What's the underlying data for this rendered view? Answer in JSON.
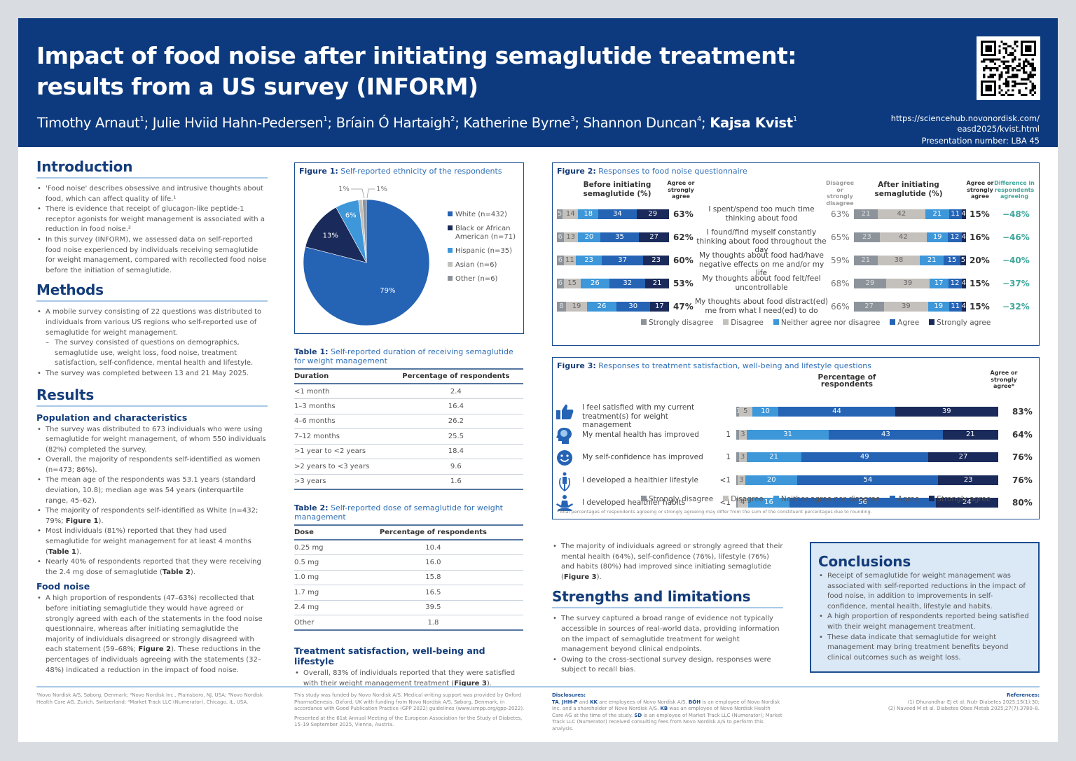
{
  "header": {
    "title_line1": "Impact of food noise after initiating semaglutide treatment:",
    "title_line2": "results from a US survey (INFORM)",
    "authors": [
      {
        "name": "Timothy Arnaut",
        "aff": "1",
        "bold": false
      },
      {
        "name": "Julie Hviid Hahn-Pedersen",
        "aff": "1",
        "bold": false
      },
      {
        "name": "Bríain Ó Hartaigh",
        "aff": "2",
        "bold": false
      },
      {
        "name": "Katherine Byrne",
        "aff": "3",
        "bold": false
      },
      {
        "name": "Shannon Duncan",
        "aff": "4",
        "bold": false
      },
      {
        "name": "Kajsa Kvist",
        "aff": "1",
        "bold": true
      }
    ],
    "url_line1": "https://sciencehub.novonordisk.com/",
    "url_line2": "easd2025/kvist.html",
    "presentation": "Presentation number: LBA 45",
    "qr_icon": "qr-code-icon"
  },
  "introduction": {
    "heading": "Introduction",
    "bullets": [
      "'Food noise' describes obsessive and intrusive thoughts about food, which can affect quality of life.¹",
      "There is evidence that receipt of glucagon-like peptide-1 receptor agonists for weight management is associated with a reduction in food noise.²",
      "In this survey (INFORM), we assessed data on self-reported food noise experienced by individuals receiving semaglutide for weight management, compared with recollected food noise before the initiation of semaglutide."
    ]
  },
  "methods": {
    "heading": "Methods",
    "bullets": [
      "A mobile survey consisting of 22 questions was distributed to individuals from various US regions who self-reported use of semaglutide for weight management.",
      "The survey consisted of questions on demographics, semaglutide use, weight loss, food noise, treatment satisfaction, self-confidence, mental health and lifestyle.",
      "The survey was completed between 13 and 21 May 2025."
    ]
  },
  "results": {
    "heading": "Results",
    "pop_heading": "Population and characteristics",
    "pop_bullets": [
      "The survey was distributed to 673 individuals who were using semaglutide for weight management, of whom 550 individuals (82%) completed the survey.",
      "Overall, the majority of respondents self-identified as women (n=473; 86%).",
      "The mean age of the respondents was 53.1 years (standard deviation, 10.8); median age was 54 years (interquartile range, 45–62).",
      "The majority of respondents self-identified as White (n=432; 79%; ",
      "Most individuals (81%) reported that they had used semaglutide for weight management for at least 4 months (",
      "Nearly 40% of respondents reported that they were receiving the 2.4 mg dose of semaglutide ("
    ],
    "pop_refs": [
      "Figure 1",
      "Table 1",
      "Table 2"
    ],
    "food_heading": "Food noise",
    "food_bullet_a": "A high proportion of respondents (47–63%) recollected that before initiating semaglutide they would have agreed or strongly agreed with each of the statements in the food noise questionnaire, whereas after initiating semaglutide the majority of individuals disagreed or strongly disagreed with each statement (59–68%; ",
    "food_ref": "Figure 2",
    "food_bullet_b": "). These reductions in the percentages of individuals agreeing with the statements (32–48%) indicated a reduction in the impact of food noise."
  },
  "figure1": {
    "label": "Figure 1:",
    "title": "Self-reported ethnicity of the respondents",
    "chart_data": {
      "type": "pie",
      "title": "Self-reported ethnicity of the respondents",
      "slices": [
        {
          "name": "White (n=432)",
          "value": 79,
          "label": "79%",
          "color": "#2563b5"
        },
        {
          "name": "Black or African American (n=71)",
          "value": 13,
          "label": "13%",
          "color": "#1a2a5a"
        },
        {
          "name": "Hispanic (n=35)",
          "value": 6,
          "label": "6%",
          "color": "#3d97d9"
        },
        {
          "name": "Asian (n=6)",
          "value": 1,
          "label": "1%",
          "color": "#c4c1bd"
        },
        {
          "name": "Other (n=6)",
          "value": 1,
          "label": "1%",
          "color": "#8c939b"
        }
      ],
      "legend_position": "right"
    }
  },
  "table1": {
    "label": "Table 1:",
    "title": "Self-reported duration of receiving semaglutide for weight management",
    "headers": [
      "Duration",
      "Percentage of respondents"
    ],
    "rows": [
      [
        "<1 month",
        "2.4"
      ],
      [
        "1–3 months",
        "16.4"
      ],
      [
        "4–6 months",
        "26.2"
      ],
      [
        "7–12 months",
        "25.5"
      ],
      [
        ">1 year to <2 years",
        "18.4"
      ],
      [
        ">2 years to <3 years",
        "9.6"
      ],
      [
        ">3 years",
        "1.6"
      ]
    ]
  },
  "table2": {
    "label": "Table 2:",
    "title": "Self-reported dose of semaglutide for weight management",
    "headers": [
      "Dose",
      "Percentage of respondents"
    ],
    "rows": [
      [
        "0.25 mg",
        "10.4"
      ],
      [
        "0.5 mg",
        "16.0"
      ],
      [
        "1.0 mg",
        "15.8"
      ],
      [
        "1.7 mg",
        "16.5"
      ],
      [
        "2.4 mg",
        "39.5"
      ],
      [
        "Other",
        "1.8"
      ]
    ]
  },
  "treatment": {
    "heading": "Treatment satisfaction, well-being and lifestyle",
    "bullet_a": "Overall, 83% of individuals reported that they were satisfied with their weight management treatment (",
    "ref": "Figure 3",
    "bullet_b": ").",
    "bullet2_a": "The majority of individuals agreed or strongly agreed that their mental health (64%), self-confidence (76%), lifestyle (76%) and habits (80%) had improved since initiating semaglutide (",
    "bullet2_ref": "Figure 3",
    "bullet2_b": ")."
  },
  "figure2": {
    "label": "Figure 2:",
    "title": "Responses to food noise questionnaire",
    "before_header": "Before initiating semaglutide (%)",
    "agree_header": "Agree or strongly agree",
    "disagree_header": "Disagree or strongly disagree",
    "after_header": "After initiating semaglutide (%)",
    "diff_header": "Difference in respondents agreeing",
    "legend": [
      "Strongly disagree",
      "Disagree",
      "Neither agree nor disagree",
      "Agree",
      "Strongly agree"
    ],
    "colors": {
      "strongly_disagree": "#8c939b",
      "disagree": "#c4c1bd",
      "neither": "#3d97d9",
      "agree": "#2563b5",
      "strongly_agree": "#1a2a5a",
      "diff": "#3fa69a"
    },
    "chart_data": {
      "type": "bar",
      "orientation": "horizontal-stacked",
      "title": "Responses to food noise questionnaire",
      "categories": [
        "I spent/spend too much time thinking about food",
        "I found/find myself constantly thinking about food throughout the day",
        "My thoughts about food had/have negative effects on me and/or my life",
        "My thoughts about food felt/feel uncontrollable",
        "My thoughts about food distract(ed) me from what I need(ed) to do"
      ],
      "before": [
        {
          "values": [
            5,
            14,
            18,
            34,
            29
          ],
          "agree": "63%"
        },
        {
          "values": [
            6,
            13,
            20,
            35,
            27
          ],
          "agree": "62%"
        },
        {
          "values": [
            6,
            11,
            23,
            37,
            23
          ],
          "agree": "60%"
        },
        {
          "values": [
            6,
            15,
            26,
            32,
            21
          ],
          "agree": "53%"
        },
        {
          "values": [
            8,
            19,
            26,
            30,
            17
          ],
          "agree": "47%"
        }
      ],
      "after": [
        {
          "values": [
            21,
            42,
            21,
            11,
            4
          ],
          "disagree": "63%",
          "agree": "15%",
          "diff": "−48%"
        },
        {
          "values": [
            23,
            42,
            19,
            12,
            4
          ],
          "disagree": "65%",
          "agree": "16%",
          "diff": "−46%"
        },
        {
          "values": [
            21,
            38,
            21,
            15,
            5
          ],
          "disagree": "59%",
          "agree": "20%",
          "diff": "−40%"
        },
        {
          "values": [
            29,
            39,
            17,
            12,
            4
          ],
          "disagree": "68%",
          "agree": "15%",
          "diff": "−37%"
        },
        {
          "values": [
            27,
            39,
            19,
            11,
            4
          ],
          "disagree": "66%",
          "agree": "15%",
          "diff": "−32%"
        }
      ],
      "series_names": [
        "Strongly disagree",
        "Disagree",
        "Neither agree nor disagree",
        "Agree",
        "Strongly agree"
      ]
    }
  },
  "figure3": {
    "label": "Figure 3:",
    "title": "Responses to treatment satisfaction, well-being and lifestyle questions",
    "axis_header": "Percentage of respondents",
    "agree_header": "Agree or strongly agree*",
    "footnote": "*Total percentages of respondents agreeing or strongly agreeing may differ from the sum of the constituent percentages due to rounding.",
    "legend": [
      "Strongly disagree",
      "Disagree",
      "Neither agree nor disagree",
      "Agree",
      "Strongly agree"
    ],
    "chart_data": {
      "type": "bar",
      "orientation": "horizontal-stacked",
      "title": "Responses to treatment satisfaction, well-being and lifestyle questions",
      "categories": [
        "I feel satisfied with my current treatment(s) for weight management",
        "My mental health has improved",
        "My self-confidence has improved",
        "I developed a healthier lifestyle",
        "I developed healthier habits"
      ],
      "icons": [
        "thumbs-up-icon",
        "head-brain-icon",
        "smiley-face-icon",
        "person-jump-rope-icon",
        "person-meditation-icon"
      ],
      "series_names": [
        "Strongly disagree",
        "Disagree",
        "Neither agree nor disagree",
        "Agree",
        "Strongly agree"
      ],
      "rows": [
        {
          "values": [
            1,
            5,
            10,
            44,
            39
          ],
          "labels": [
            "1",
            "5",
            "10",
            "44",
            "39"
          ],
          "outside": "",
          "agree": "83%"
        },
        {
          "values": [
            1,
            3,
            31,
            43,
            21
          ],
          "labels": [
            "",
            "3",
            "31",
            "43",
            "21"
          ],
          "outside": "1",
          "agree": "64%"
        },
        {
          "values": [
            1,
            3,
            21,
            49,
            27
          ],
          "labels": [
            "",
            "3",
            "21",
            "49",
            "27"
          ],
          "outside": "1",
          "agree": "76%"
        },
        {
          "values": [
            0.5,
            3,
            20,
            54,
            23
          ],
          "labels": [
            "",
            "3",
            "20",
            "54",
            "23"
          ],
          "outside": "<1",
          "agree": "76%"
        },
        {
          "values": [
            0.5,
            4,
            16,
            56,
            24
          ],
          "labels": [
            "",
            "4",
            "16",
            "56",
            "24"
          ],
          "outside": "<1",
          "agree": "80%"
        }
      ]
    }
  },
  "strengths": {
    "heading": "Strengths and limitations",
    "bullets": [
      "The survey captured a broad range of evidence not typically accessible in sources of real-world data, providing information on the impact of semaglutide treatment for weight management beyond clinical endpoints.",
      "Owing to the cross-sectional survey design, responses were subject to recall bias."
    ]
  },
  "conclusions": {
    "heading": "Conclusions",
    "bullets": [
      "Receipt of semaglutide for weight management was associated with self-reported reductions in the impact of food noise, in addition to improvements in self-confidence, mental health, lifestyle and habits.",
      "A high proportion of respondents reported being satisfied with their weight management treatment.",
      "These data indicate that semaglutide for weight management may bring treatment benefits beyond clinical outcomes such as weight loss."
    ]
  },
  "footer": {
    "affiliations": "¹Novo Nordisk A/S, Søborg, Denmark; ²Novo Nordisk Inc., Plainsboro, NJ, USA; ³Novo Nordisk Health Care AG, Zurich, Switzerland; ⁴Market Track LLC (Numerator), Chicago, IL, USA.",
    "funding": "This study was funded by Novo Nordisk A/S. Medical writing support was provided by Oxford PharmaGenesis, Oxford, UK with funding from Novo Nordisk A/S, Søborg, Denmark, in accordance with Good Publication Practice (GPP 2022) guidelines (www.ismpp.org/gpp-2022).",
    "presented": "Presented at the 61st Annual Meeting of the European Association for the Study of Diabetes, 15–19 September 2025, Vienna, Austria.",
    "disclosures_heading": "Disclosures:",
    "disclosures": [
      {
        "b": "TA",
        "t": ", "
      },
      {
        "b": "JHH-P",
        "t": " and "
      },
      {
        "b": "KK",
        "t": " are employees of Novo Nordisk A/S. "
      },
      {
        "b": "BÓH",
        "t": " is an employee of Novo Nordisk Inc. and a shareholder of Novo Nordisk A/S. "
      },
      {
        "b": "KB",
        "t": " was an employee of Novo Nordisk Health Care AG at the time of the study. "
      },
      {
        "b": "SD",
        "t": " is an employee of Market Track LLC (Numerator); Market Track LLC (Numerator) received consulting fees from Novo Nordisk A/S to perform this analysis."
      }
    ],
    "references_heading": "References:",
    "references": [
      "(1) Dhurandhar EJ et al. Nutr Diabetes 2025;15(1):30;",
      "(2) Naveed M et al. Diabetes Obes Metab 2025;27(7):3780–8."
    ]
  }
}
